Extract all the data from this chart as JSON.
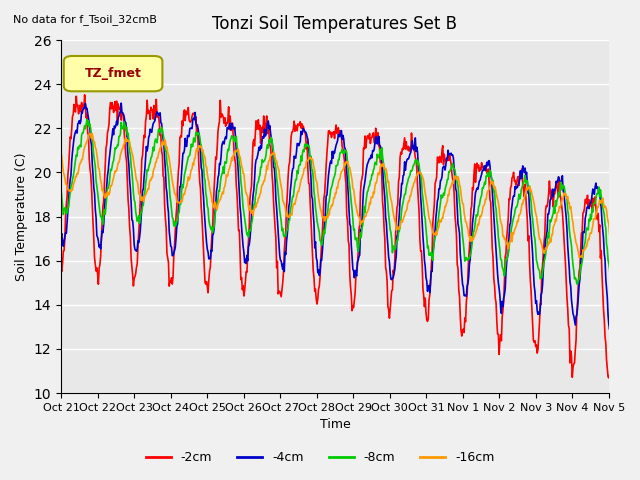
{
  "title": "Tonzi Soil Temperatures Set B",
  "xlabel": "Time",
  "ylabel": "Soil Temperature (C)",
  "ylim": [
    10,
    26
  ],
  "no_data_text": "No data for f_Tsoil_32cmB",
  "legend_box_text": "TZ_fmet",
  "xtick_labels": [
    "Oct 21",
    "Oct 22",
    "Oct 23",
    "Oct 24",
    "Oct 25",
    "Oct 26",
    "Oct 27",
    "Oct 28",
    "Oct 29",
    "Oct 30",
    "Oct 31",
    "Nov 1",
    "Nov 2",
    "Nov 3",
    "Nov 4",
    "Nov 5"
  ],
  "line_colors": [
    "#ff0000",
    "#0000cc",
    "#00cc00",
    "#ff9900"
  ],
  "line_labels": [
    "-2cm",
    "-4cm",
    "-8cm",
    "-16cm"
  ],
  "bg_color": "#e8e8e8",
  "grid_color": "#ffffff",
  "fig_bg": "#f0f0f0"
}
